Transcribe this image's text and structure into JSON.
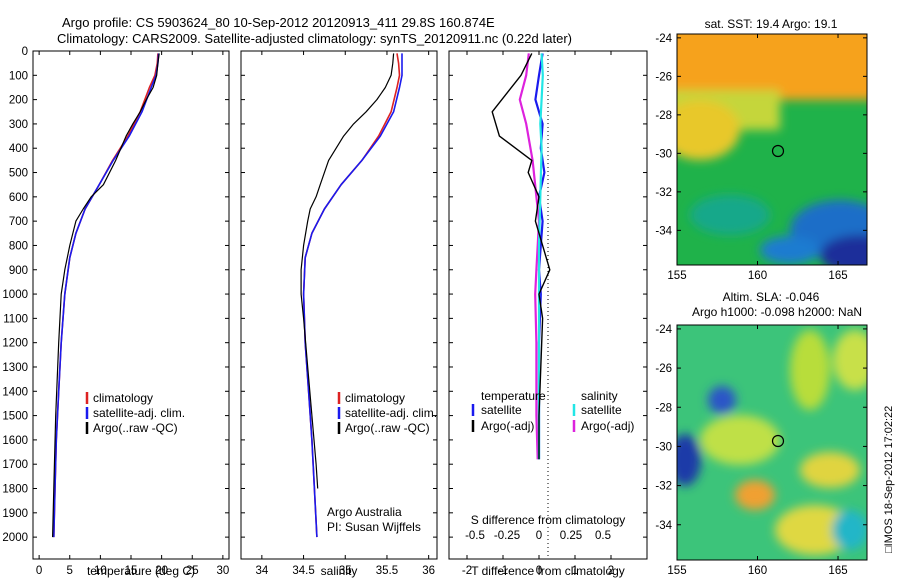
{
  "header": {
    "line1": "Argo profile: CS 5903624_80 10-Sep-2012 20120913_411 29.8S 160.874E",
    "line2": "Climatology: CARS2009. Satellite-adjusted climatology: synTS_20120911.nc (0.22d later)"
  },
  "colors": {
    "climatology": "#dd2222",
    "satellite": "#1a1aee",
    "argo": "#000000",
    "argo_salinity_diff": "#dd22dd",
    "satellite_salinity_diff": "#22e6e6"
  },
  "chart_data": [
    {
      "type": "line",
      "id": "temperature",
      "xlabel": "temperature (deg C)",
      "xlim": [
        -1,
        31
      ],
      "xticks": [
        "0",
        "5",
        "10",
        "15",
        "20",
        "25",
        "30"
      ],
      "ylim": [
        0,
        2090
      ],
      "yticks": [
        "0",
        "100",
        "200",
        "300",
        "400",
        "500",
        "600",
        "700",
        "800",
        "900",
        "1000",
        "1100",
        "1200",
        "1300",
        "1400",
        "1500",
        "1600",
        "1700",
        "1800",
        "1900",
        "2000"
      ],
      "legend": [
        "climatology",
        "satellite-adj. clim.",
        "Argo(..raw -QC)"
      ],
      "series": [
        {
          "name": "climatology",
          "x": [
            19.4,
            19.3,
            18.9,
            18.0,
            16.5,
            14.5,
            12.0,
            9.8,
            7.5,
            6.0,
            5.0,
            4.2,
            3.6,
            3.2,
            2.8,
            2.6,
            2.4
          ],
          "y": [
            10,
            50,
            100,
            150,
            250,
            350,
            450,
            550,
            650,
            750,
            850,
            1000,
            1200,
            1400,
            1600,
            1800,
            2000
          ]
        },
        {
          "name": "satellite-adj. clim.",
          "x": [
            19.5,
            19.4,
            19.1,
            18.3,
            16.8,
            14.7,
            12.1,
            9.8,
            7.5,
            6.0,
            5.0,
            4.2,
            3.6,
            3.2,
            2.8,
            2.6,
            2.4
          ],
          "y": [
            10,
            50,
            100,
            150,
            250,
            350,
            450,
            550,
            650,
            750,
            850,
            1000,
            1200,
            1400,
            1600,
            1800,
            2000
          ]
        },
        {
          "name": "Argo(..raw -QC)",
          "x": [
            19.6,
            19.4,
            19.2,
            18.6,
            17.5,
            16.5,
            15.3,
            14.2,
            12.5,
            10.5,
            8.5,
            7.2,
            6.0,
            5.0,
            4.2,
            3.6,
            3.2,
            2.7,
            2.4,
            2.2
          ],
          "y": [
            10,
            50,
            100,
            150,
            200,
            250,
            300,
            350,
            450,
            550,
            600,
            650,
            700,
            800,
            900,
            1000,
            1200,
            1500,
            1800,
            2000
          ]
        }
      ]
    },
    {
      "type": "line",
      "id": "salinity",
      "xlabel": "salinity",
      "xlim": [
        33.75,
        36.1
      ],
      "xticks": [
        "34",
        "34.5",
        "35",
        "35.5",
        "36"
      ],
      "legend": [
        "climatology",
        "satellite-adj. clim.",
        "Argo(..raw -QC)"
      ],
      "annotation": [
        "Argo Australia",
        "PI: Susan Wijffels"
      ],
      "series": [
        {
          "name": "climatology",
          "x": [
            35.62,
            35.64,
            35.65,
            35.62,
            35.55,
            35.4,
            35.2,
            34.95,
            34.75,
            34.6,
            34.52,
            34.5,
            34.52,
            34.56,
            34.6,
            34.63,
            34.66
          ],
          "y": [
            10,
            50,
            100,
            150,
            250,
            350,
            450,
            550,
            650,
            750,
            850,
            1000,
            1200,
            1400,
            1600,
            1800,
            2000
          ]
        },
        {
          "name": "satellite-adj. clim.",
          "x": [
            35.68,
            35.68,
            35.68,
            35.65,
            35.58,
            35.42,
            35.2,
            34.95,
            34.75,
            34.6,
            34.52,
            34.5,
            34.52,
            34.56,
            34.6,
            34.63,
            34.66
          ],
          "y": [
            10,
            50,
            100,
            150,
            250,
            350,
            450,
            550,
            650,
            750,
            850,
            1000,
            1200,
            1400,
            1600,
            1800,
            2000
          ]
        },
        {
          "name": "Argo(..raw -QC)",
          "x": [
            35.58,
            35.57,
            35.55,
            35.48,
            35.38,
            35.25,
            35.1,
            34.98,
            34.8,
            34.7,
            34.65,
            34.58,
            34.55,
            34.5,
            34.47,
            34.47,
            34.5,
            34.55,
            34.6,
            34.65,
            34.67
          ],
          "y": [
            10,
            50,
            100,
            150,
            200,
            250,
            300,
            350,
            450,
            550,
            600,
            650,
            700,
            800,
            900,
            1000,
            1100,
            1300,
            1500,
            1700,
            1800
          ]
        }
      ]
    },
    {
      "type": "line",
      "id": "differences",
      "xlabel": "T difference from climatology",
      "xlabel_top": "S difference from climatology",
      "xlim": [
        -2.5,
        3.0
      ],
      "xticks": [
        "-2",
        "-1",
        "0",
        "1",
        "2"
      ],
      "xticks_top": [
        "-0.5",
        "-0.25",
        "0",
        "0.25",
        "0.5"
      ],
      "legend_temperature": {
        "title": "temperature",
        "items": [
          "satellite",
          "Argo(-adj)"
        ]
      },
      "legend_salinity": {
        "title": "salinity",
        "items": [
          "satellite",
          "Argo(-adj)"
        ]
      },
      "series": [
        {
          "name": "T satellite",
          "x": [
            0.1,
            0.0,
            -0.1,
            0.1,
            0.05,
            0.15,
            0.0,
            0.1,
            0.05,
            0.0,
            0.05,
            0.0,
            0.0
          ],
          "y": [
            10,
            100,
            200,
            300,
            400,
            500,
            600,
            700,
            800,
            900,
            1000,
            1200,
            1680
          ]
        },
        {
          "name": "T Argo(-adj)",
          "x": [
            -0.2,
            -0.5,
            -1.3,
            -1.1,
            -0.2,
            -0.3,
            0.0,
            -0.1,
            0.1,
            0.3,
            0.0,
            0.1,
            0.05,
            0.0,
            0.0
          ],
          "y": [
            10,
            100,
            250,
            350,
            450,
            500,
            600,
            700,
            800,
            900,
            1000,
            1100,
            1300,
            1500,
            1680
          ]
        },
        {
          "name": "S satellite",
          "x": [
            0.02,
            0.03,
            0.02,
            0.01,
            0.02,
            0.01,
            0.0,
            0.0,
            0.0,
            0.0
          ],
          "y": [
            10,
            100,
            200,
            300,
            400,
            600,
            800,
            1000,
            1300,
            1680
          ]
        },
        {
          "name": "S Argo(-adj)",
          "x": [
            -0.08,
            -0.1,
            -0.15,
            -0.1,
            -0.05,
            -0.02,
            0.0,
            -0.02,
            -0.03,
            -0.02,
            -0.02,
            -0.01
          ],
          "y": [
            10,
            100,
            200,
            300,
            450,
            600,
            700,
            900,
            1000,
            1200,
            1500,
            1680
          ]
        }
      ]
    },
    {
      "type": "heatmap",
      "id": "sst_map",
      "title": "sat. SST: 19.4  Argo: 19.1",
      "xlim": [
        155,
        166.8
      ],
      "ylim": [
        -35.8,
        -23.8
      ],
      "xticks": [
        "155",
        "160",
        "165"
      ],
      "yticks": [
        "-24",
        "-26",
        "-28",
        "-30",
        "-32",
        "-34"
      ],
      "marker": [
        160.87,
        -29.8
      ]
    },
    {
      "type": "heatmap",
      "id": "sla_map",
      "title": "Altim. SLA: -0.046",
      "subtitle": "Argo h1000: -0.098  h2000: NaN",
      "xlim": [
        155,
        166.8
      ],
      "ylim": [
        -35.8,
        -23.8
      ],
      "xticks": [
        "155",
        "160",
        "165"
      ],
      "yticks": [
        "-24",
        "-26",
        "-28",
        "-30",
        "-32",
        "-34"
      ],
      "marker": [
        160.87,
        -29.8
      ]
    }
  ],
  "credit": "□IMOS 18-Sep-2012 17:02:22"
}
